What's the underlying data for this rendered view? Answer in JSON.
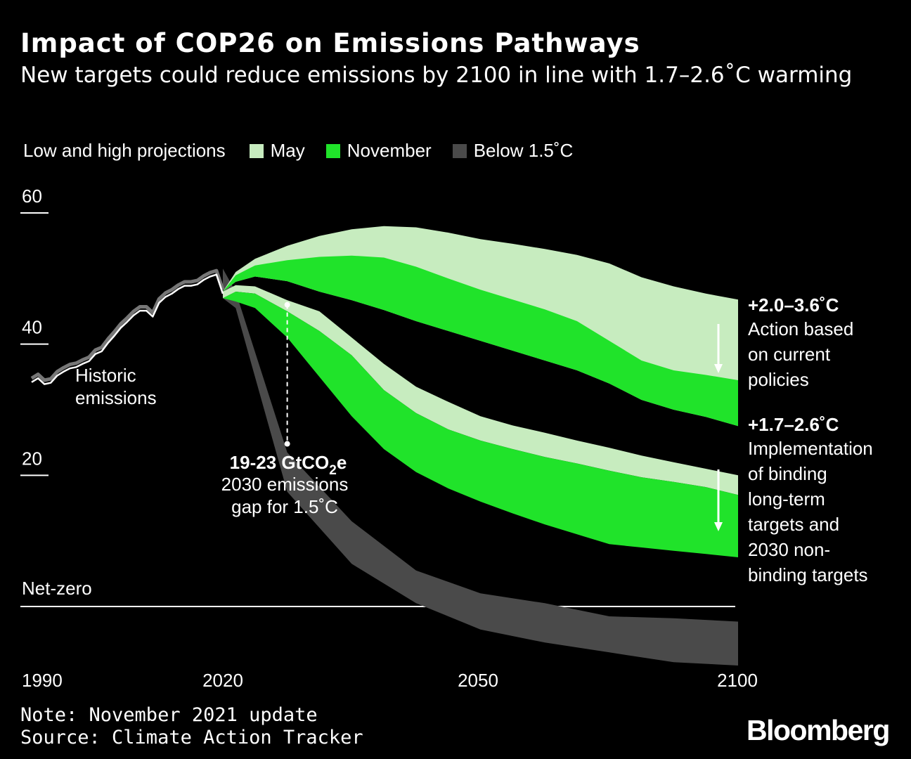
{
  "header": {
    "title": "Impact of COP26 on Emissions Pathways",
    "subtitle": "New targets could reduce emissions by 2100 in line with 1.7–2.6˚C warming"
  },
  "legend": {
    "label": "Low and high projections",
    "items": [
      {
        "name": "May",
        "color": "#c7ecbf"
      },
      {
        "name": "November",
        "color": "#20e32a"
      },
      {
        "name": "Below 1.5˚C",
        "color": "#4a4a4a"
      }
    ]
  },
  "annotations": {
    "net_zero": "Net-zero",
    "historic": [
      "Historic",
      "emissions"
    ],
    "gap_value": "19-23 GtCO",
    "gap_sub": "2",
    "gap_unit": "e",
    "gap_line1": "2030 emissions",
    "gap_line2": "gap for 1.5˚C",
    "upper_heading": "+2.0–3.6˚C",
    "upper_lines": [
      "Action based",
      "on current",
      "policies"
    ],
    "lower_heading": "+1.7–2.6˚C",
    "lower_lines": [
      "Implementation",
      "of binding",
      "long-term",
      "targets and",
      "2030 non-",
      "binding targets"
    ]
  },
  "footer": {
    "note": "Note: November 2021 update",
    "source": "Source: Climate Action Tracker",
    "brand": "Bloomberg"
  },
  "chart_data": {
    "type": "area",
    "title": "Impact of COP26 on Emissions Pathways",
    "ylabel": "GtCO2e",
    "xlim": [
      1990,
      2100
    ],
    "ylim": [
      -10,
      60
    ],
    "x_ticks": [
      1990,
      2020,
      2050,
      2100
    ],
    "y_ticks": [
      60,
      40,
      20
    ],
    "historic": {
      "name": "Historic emissions",
      "x": [
        1990,
        1991,
        1992,
        1993,
        1994,
        1995,
        1996,
        1997,
        1998,
        1999,
        2000,
        2001,
        2002,
        2003,
        2004,
        2005,
        2006,
        2007,
        2008,
        2009,
        2010,
        2011,
        2012,
        2013,
        2014,
        2015,
        2016,
        2017,
        2018,
        2019,
        2020
      ],
      "y": [
        34.2,
        34.8,
        33.9,
        34.1,
        35.2,
        35.8,
        36.3,
        36.5,
        37.0,
        37.4,
        38.5,
        38.9,
        40.2,
        41.3,
        42.5,
        43.4,
        44.4,
        45.1,
        45.1,
        44.2,
        46.3,
        47.2,
        47.7,
        48.4,
        48.9,
        48.9,
        49.1,
        49.8,
        50.3,
        50.6,
        47.7
      ]
    },
    "series": [
      {
        "name": "Below 1.5˚C",
        "color": "#4a4a4a",
        "x": [
          2020,
          2022,
          2030,
          2040,
          2050,
          2060,
          2070,
          2080,
          2090,
          2100
        ],
        "high": [
          51.5,
          48.0,
          23.5,
          13.0,
          5.5,
          2.0,
          0.5,
          -1.5,
          -1.8,
          -2.3
        ],
        "low": [
          47.0,
          45.5,
          17.5,
          6.5,
          0.5,
          -3.5,
          -5.5,
          -7.0,
          -8.5,
          -9.0
        ]
      },
      {
        "name": "May",
        "color": "#c7ecbf",
        "x": [
          2020,
          2022,
          2025,
          2030,
          2035,
          2040,
          2045,
          2050,
          2055,
          2060,
          2065,
          2070,
          2075,
          2080,
          2085,
          2090,
          2095,
          2100
        ],
        "high": [
          48.0,
          51.0,
          53.0,
          55.0,
          56.5,
          57.5,
          58.0,
          57.8,
          57.0,
          56.0,
          55.3,
          54.5,
          53.6,
          52.3,
          50.2,
          48.8,
          47.7,
          46.8
        ],
        "low": [
          47.0,
          48.0,
          47.7,
          45.0,
          42.0,
          38.3,
          33.0,
          29.5,
          27.0,
          25.3,
          24.0,
          22.8,
          21.8,
          20.7,
          19.7,
          19.0,
          18.2,
          17.0
        ],
        "inner_lower": [
          48.0,
          49.5,
          50.3,
          49.6,
          48.0,
          46.7,
          45.2,
          43.5,
          42.0,
          40.5,
          39.0,
          37.5,
          36.0,
          34.0,
          31.5,
          30.0,
          28.9,
          27.5
        ]
      },
      {
        "name": "November (current policies)",
        "color": "#20e32a",
        "x": [
          2020,
          2022,
          2025,
          2030,
          2035,
          2040,
          2045,
          2050,
          2055,
          2060,
          2065,
          2070,
          2075,
          2080,
          2085,
          2090,
          2095,
          2100
        ],
        "high": [
          48.0,
          50.5,
          52.0,
          52.8,
          53.3,
          53.5,
          53.2,
          51.8,
          50.0,
          48.3,
          46.8,
          45.3,
          43.5,
          40.5,
          37.5,
          36.0,
          35.3,
          34.5
        ],
        "low": [
          48.0,
          49.5,
          50.3,
          49.6,
          48.0,
          46.7,
          45.2,
          43.5,
          42.0,
          40.5,
          39.0,
          37.5,
          36.0,
          34.0,
          31.5,
          30.0,
          28.9,
          27.5
        ]
      },
      {
        "name": "November (binding targets)",
        "color": "#20e32a",
        "x": [
          2020,
          2022,
          2025,
          2030,
          2035,
          2040,
          2045,
          2050,
          2055,
          2060,
          2065,
          2070,
          2075,
          2080,
          2085,
          2090,
          2095,
          2100
        ],
        "high": [
          47.0,
          48.0,
          47.7,
          45.0,
          42.0,
          38.3,
          33.0,
          29.5,
          27.0,
          25.3,
          24.0,
          22.8,
          21.8,
          20.7,
          19.7,
          19.0,
          18.2,
          17.0
        ],
        "low": [
          47.0,
          46.5,
          45.5,
          41.0,
          35.0,
          29.0,
          24.0,
          20.5,
          18.0,
          16.0,
          14.2,
          12.5,
          11.0,
          9.5,
          9.0,
          8.5,
          8.0,
          7.5
        ]
      }
    ],
    "gap_marker": {
      "x": 2030,
      "top": 46.0,
      "bottom": 24.8
    }
  }
}
